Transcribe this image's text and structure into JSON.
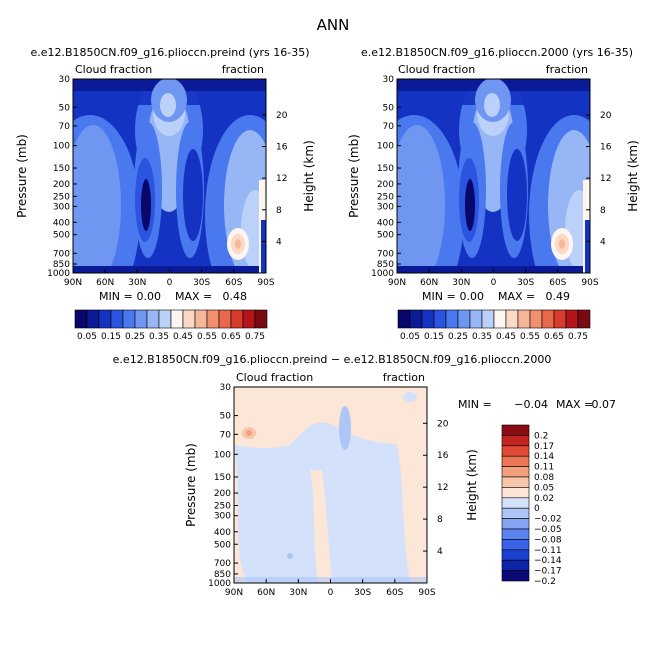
{
  "figure_title": "ANN",
  "colors": {
    "abs_scale": [
      "#08086b",
      "#0b1a96",
      "#1433c2",
      "#2b55e0",
      "#4a78ee",
      "#6f97f2",
      "#96b6f6",
      "#bcd1f9",
      "#fdf5ef",
      "#fbd9c4",
      "#f6b699",
      "#f18f6e",
      "#e9674a",
      "#d63b2c",
      "#b3151b",
      "#7a0a12"
    ],
    "diff_scale": [
      "#09097a",
      "#0e24a8",
      "#1a40d0",
      "#3a62e8",
      "#5c84f0",
      "#85a5f3",
      "#adc6f7",
      "#d3e2fa",
      "#fce6d7",
      "#f8c6aa",
      "#f3a07e",
      "#ec7755",
      "#e04a33",
      "#c52320",
      "#8c0c14"
    ]
  },
  "chart_data": [
    {
      "type": "heatmap",
      "title": "e.e12.B1850CN.f09_g16.plioccn.preind (yrs 16-35)",
      "left_label": "Cloud fraction",
      "right_label": "fraction",
      "ylabel": "Pressure (mb)",
      "ylabel_right": "Height (km)",
      "x_ticks": [
        "90N",
        "60N",
        "30N",
        "0",
        "30S",
        "60S",
        "90S"
      ],
      "y_ticks": [
        "30",
        "50",
        "70",
        "100",
        "150",
        "200",
        "250",
        "300",
        "400",
        "500",
        "700",
        "850",
        "1000"
      ],
      "height_ticks": [
        "20",
        "16",
        "12",
        "8",
        "4"
      ],
      "min_label": "MIN =",
      "min_value": "0.00",
      "max_label": "MAX =",
      "max_value": "0.48",
      "colorbar_labels": [
        "0.05",
        "0.15",
        "0.25",
        "0.35",
        "0.45",
        "0.55",
        "0.65",
        "0.75"
      ]
    },
    {
      "type": "heatmap",
      "title": "e.e12.B1850CN.f09_g16.plioccn.2000 (yrs 16-35)",
      "left_label": "Cloud fraction",
      "right_label": "fraction",
      "ylabel": "Pressure (mb)",
      "ylabel_right": "Height (km)",
      "x_ticks": [
        "90N",
        "60N",
        "30N",
        "0",
        "30S",
        "60S",
        "90S"
      ],
      "y_ticks": [
        "30",
        "50",
        "70",
        "100",
        "150",
        "200",
        "250",
        "300",
        "400",
        "500",
        "700",
        "850",
        "1000"
      ],
      "height_ticks": [
        "20",
        "16",
        "12",
        "8",
        "4"
      ],
      "min_label": "MIN =",
      "min_value": "0.00",
      "max_label": "MAX =",
      "max_value": "0.49",
      "colorbar_labels": [
        "0.05",
        "0.15",
        "0.25",
        "0.35",
        "0.45",
        "0.55",
        "0.65",
        "0.75"
      ]
    },
    {
      "type": "heatmap",
      "title": "e.e12.B1850CN.f09_g16.plioccn.preind − e.e12.B1850CN.f09_g16.plioccn.2000",
      "left_label": "Cloud fraction",
      "right_label": "fraction",
      "ylabel": "Pressure (mb)",
      "ylabel_right": "Height (km)",
      "x_ticks": [
        "90N",
        "60N",
        "30N",
        "0",
        "30S",
        "60S",
        "90S"
      ],
      "y_ticks": [
        "30",
        "50",
        "70",
        "100",
        "150",
        "200",
        "250",
        "300",
        "400",
        "500",
        "700",
        "850",
        "1000"
      ],
      "height_ticks": [
        "20",
        "16",
        "12",
        "8",
        "4"
      ],
      "min_label": "MIN =",
      "min_value": "−0.04",
      "max_label": "MAX =",
      "max_value": "0.07",
      "colorbar_labels": [
        "0.2",
        "0.17",
        "0.14",
        "0.11",
        "0.08",
        "0.05",
        "0.02",
        "0",
        "−0.02",
        "−0.05",
        "−0.08",
        "−0.11",
        "−0.14",
        "−0.17",
        "−0.2"
      ]
    }
  ]
}
